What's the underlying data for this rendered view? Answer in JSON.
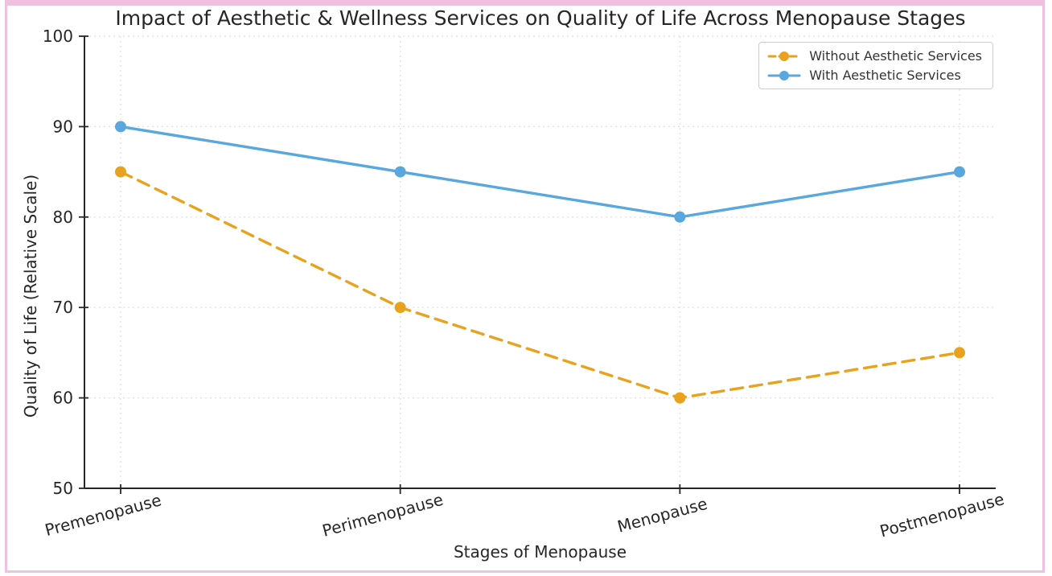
{
  "figure": {
    "border_color": "#f0c0e1",
    "background": "#ffffff"
  },
  "chart_data": {
    "type": "line",
    "title": "Impact of Aesthetic & Wellness Services on Quality of Life Across Menopause Stages",
    "xlabel": "Stages of Menopause",
    "ylabel": "Quality of Life (Relative Scale)",
    "categories": [
      "Premenopause",
      "Perimenopause",
      "Menopause",
      "Postmenopause"
    ],
    "series": [
      {
        "name": "Without Aesthetic Services",
        "values": [
          85,
          70,
          60,
          65
        ],
        "color": "#E8A21D",
        "style": "dashed",
        "marker": "circle"
      },
      {
        "name": "With Aesthetic Services",
        "values": [
          90,
          85,
          80,
          85
        ],
        "color": "#58A7DE",
        "style": "solid",
        "marker": "circle"
      }
    ],
    "ylim": [
      50,
      100
    ],
    "yticks": [
      50,
      60,
      70,
      80,
      90,
      100
    ],
    "grid": true,
    "grid_style": "dotted",
    "grid_color": "#e0e0e0",
    "axis_color": "#262626",
    "legend_position": "top-right",
    "x_tick_rotation_deg": 15
  }
}
